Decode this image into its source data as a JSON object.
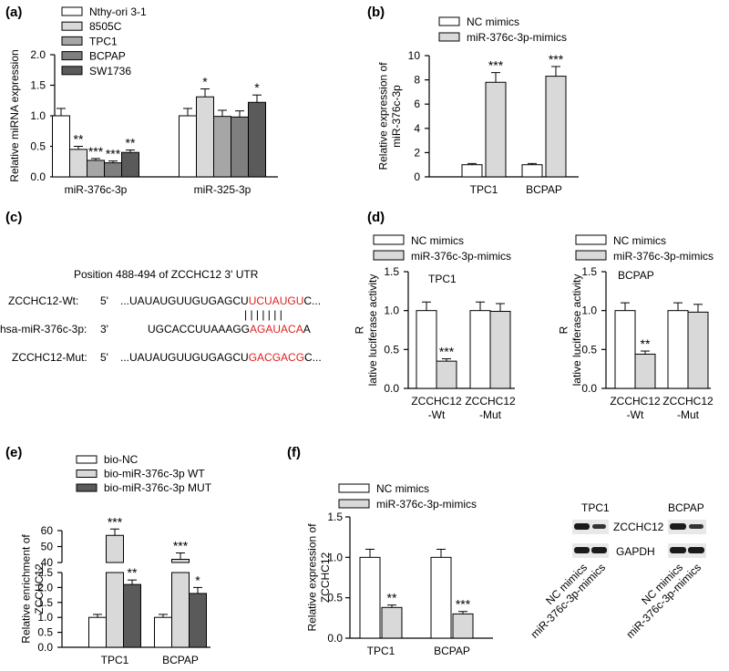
{
  "colors": {
    "white": "#ffffff",
    "light_gray": "#d9d9d9",
    "mid_gray": "#a6a6a6",
    "dark_gray": "#7f7f7f",
    "darker_gray": "#5a5a5a",
    "red": "#e02020",
    "blot_band": "#1a1a1a",
    "blot_bg": "#e8e8e8"
  },
  "panel_labels": [
    "(a)",
    "(b)",
    "(c)",
    "(d)",
    "(e)",
    "(f)"
  ],
  "chart_data": [
    {
      "id": "a",
      "type": "bar",
      "ylabel": "Relative miRNA expression",
      "ylim": [
        0,
        2.0
      ],
      "yticks": [
        "0.0",
        "0.5",
        "1.0",
        "1.5",
        "2.0"
      ],
      "categories": [
        "miR-376c-3p",
        "miR-325-3p"
      ],
      "legend_position": "top-left",
      "series": [
        {
          "name": "Nthy-ori 3-1",
          "color": "#ffffff",
          "values": [
            1.0,
            1.0
          ],
          "errors": [
            0.12,
            0.12
          ],
          "stars": [
            "",
            ""
          ]
        },
        {
          "name": "8505C",
          "color": "#d9d9d9",
          "values": [
            0.45,
            1.31
          ],
          "errors": [
            0.05,
            0.13
          ],
          "stars": [
            "**",
            "*"
          ]
        },
        {
          "name": "TPC1",
          "color": "#a6a6a6",
          "values": [
            0.27,
            0.99
          ],
          "errors": [
            0.03,
            0.1
          ],
          "stars": [
            "***",
            ""
          ]
        },
        {
          "name": "BCPAP",
          "color": "#7f7f7f",
          "values": [
            0.23,
            0.98
          ],
          "errors": [
            0.03,
            0.1
          ],
          "stars": [
            "***",
            ""
          ]
        },
        {
          "name": "SW1736",
          "color": "#5a5a5a",
          "values": [
            0.4,
            1.22
          ],
          "errors": [
            0.04,
            0.12
          ],
          "stars": [
            "**",
            "*"
          ]
        }
      ]
    },
    {
      "id": "b",
      "type": "bar",
      "ylabel": "Relative expression of miR-376c-3p",
      "ylim": [
        0,
        10
      ],
      "yticks": [
        "0",
        "2",
        "4",
        "6",
        "8",
        "10"
      ],
      "categories": [
        "TPC1",
        "BCPAP"
      ],
      "legend_position": "top-left",
      "series": [
        {
          "name": "NC mimics",
          "color": "#ffffff",
          "values": [
            1.0,
            1.0
          ],
          "errors": [
            0.1,
            0.1
          ],
          "stars": [
            "",
            ""
          ]
        },
        {
          "name": "miR-376c-3p-mimics",
          "color": "#d9d9d9",
          "values": [
            7.8,
            8.3
          ],
          "errors": [
            0.8,
            0.8
          ],
          "stars": [
            "***",
            "***"
          ]
        }
      ]
    },
    {
      "id": "d1",
      "type": "bar",
      "title": "TPC1",
      "ylabel": "Relative luciferase activity",
      "ylim": [
        0,
        1.5
      ],
      "yticks": [
        "0.0",
        "0.5",
        "1.0",
        "1.5"
      ],
      "categories": [
        "ZCCHC12\n-Wt",
        "ZCCHC12\n-Mut"
      ],
      "legend_position": "top-left",
      "series": [
        {
          "name": "NC mimics",
          "color": "#ffffff",
          "values": [
            1.0,
            1.0
          ],
          "errors": [
            0.11,
            0.11
          ],
          "stars": [
            "",
            ""
          ]
        },
        {
          "name": "miR-376c-3p-mimics",
          "color": "#d9d9d9",
          "values": [
            0.35,
            0.99
          ],
          "errors": [
            0.03,
            0.1
          ],
          "stars": [
            "***",
            ""
          ]
        }
      ]
    },
    {
      "id": "d2",
      "type": "bar",
      "title": "BCPAP",
      "ylabel": "Relative luciferase activity",
      "ylim": [
        0,
        1.5
      ],
      "yticks": [
        "0.0",
        "0.5",
        "1.0",
        "1.5"
      ],
      "categories": [
        "ZCCHC12\n-Wt",
        "ZCCHC12\n-Mut"
      ],
      "legend_position": "top-left",
      "series": [
        {
          "name": "NC mimics",
          "color": "#ffffff",
          "values": [
            1.0,
            1.0
          ],
          "errors": [
            0.1,
            0.1
          ],
          "stars": [
            "",
            ""
          ]
        },
        {
          "name": "miR-376c-3p-mimics",
          "color": "#d9d9d9",
          "values": [
            0.44,
            0.98
          ],
          "errors": [
            0.04,
            0.1
          ],
          "stars": [
            "**",
            ""
          ]
        }
      ]
    },
    {
      "id": "e",
      "type": "bar",
      "ylabel": "Relative enrichment of ZCCHC12",
      "broken_axis": true,
      "ylim_lower": [
        0,
        2.5
      ],
      "ylim_upper": [
        40,
        60
      ],
      "yticks_lower": [
        "0.0",
        "0.5",
        "1.0",
        "1.5",
        "2.0",
        "2.5"
      ],
      "yticks_upper": [
        "40",
        "50",
        "60"
      ],
      "categories": [
        "TPC1",
        "BCPAP"
      ],
      "legend_position": "top-left",
      "series": [
        {
          "name": "bio-NC",
          "color": "#ffffff",
          "values": [
            1.0,
            1.0
          ],
          "errors": [
            0.1,
            0.1
          ],
          "stars": [
            "",
            ""
          ]
        },
        {
          "name": "bio-miR-376c-3p WT",
          "color": "#d9d9d9",
          "values": [
            57,
            42
          ],
          "errors": [
            4,
            4
          ],
          "stars": [
            "***",
            "***"
          ]
        },
        {
          "name": "bio-miR-376c-3p MUT",
          "color": "#5a5a5a",
          "values": [
            2.1,
            1.8
          ],
          "errors": [
            0.15,
            0.2
          ],
          "stars": [
            "**",
            "*"
          ]
        }
      ]
    },
    {
      "id": "f",
      "type": "bar",
      "ylabel": "Relative expression of ZCCHC12",
      "ylim": [
        0,
        1.5
      ],
      "yticks": [
        "0.0",
        "0.5",
        "1.0",
        "1.5"
      ],
      "categories": [
        "TPC1",
        "BCPAP"
      ],
      "legend_position": "top-left",
      "series": [
        {
          "name": "NC mimics",
          "color": "#ffffff",
          "values": [
            1.0,
            1.0
          ],
          "errors": [
            0.1,
            0.1
          ],
          "stars": [
            "",
            ""
          ]
        },
        {
          "name": "miR-376c-3p-mimics",
          "color": "#d9d9d9",
          "values": [
            0.38,
            0.3
          ],
          "errors": [
            0.03,
            0.03
          ],
          "stars": [
            "**",
            "***"
          ]
        }
      ]
    }
  ],
  "panel_c": {
    "title": "Position 488-494 of ZCCHC12 3' UTR",
    "rows": [
      {
        "label": "ZCCHC12-Wt:",
        "end5": "5'",
        "seq_black": "...UAUAUGUUGUGAGCU",
        "seq_red": "UCUAUGU",
        "seq_tail": "C...",
        "pairing": "| | | | | | |"
      },
      {
        "label": "hsa-miR-376c-3p:",
        "end5": "3'",
        "seq_black": "UGCACCUUAAAGG",
        "seq_red": "AGAUACA",
        "seq_tail": "A"
      },
      {
        "label": "ZCCHC12-Mut:",
        "end5": "5'",
        "seq_black": "...UAUAUGUUGUGAGCU",
        "seq_red": "GACGACG",
        "seq_tail": "C..."
      }
    ]
  },
  "western_blot": {
    "cells": [
      "TPC1",
      "BCPAP"
    ],
    "bands": [
      "ZCCHC12",
      "GAPDH"
    ],
    "lanes": [
      "NC mimics",
      "miR-376c-3p-mimics"
    ]
  }
}
